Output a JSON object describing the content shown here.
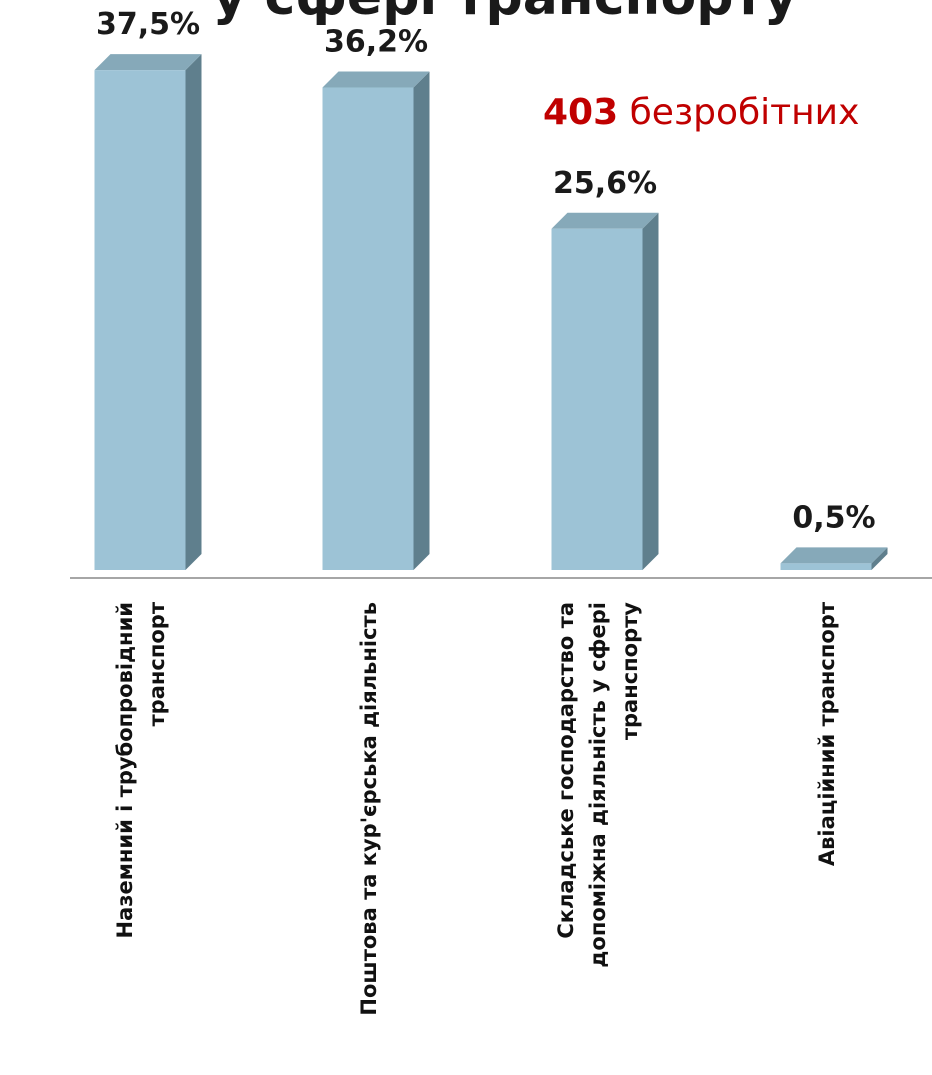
{
  "colors": {
    "bar_front": "#9dc3d6",
    "bar_side": "#5f7f8d",
    "bar_top": "#86a9b9",
    "axis": "#a6a6a6",
    "highlight": "#c00000",
    "text": "#1a1a1a"
  },
  "chart_data": {
    "type": "bar",
    "title": "у сфері транспорту",
    "categories": [
      [
        "Наземний і трубопровідний",
        "транспорт"
      ],
      [
        "Поштова та кур'єрська діяльність"
      ],
      [
        "Складське господарство та",
        "допоміжна діяльність у сфері",
        "транспорту"
      ],
      [
        "Авіаційний транспорт"
      ]
    ],
    "values": [
      37.5,
      36.2,
      25.6,
      0.5
    ],
    "value_labels": [
      "37,5%",
      "36,2%",
      "25,6%",
      "0,5%"
    ],
    "annotation": {
      "number": "403",
      "text": " безробітних"
    },
    "unit": "%",
    "grid": false,
    "legend": "none"
  }
}
